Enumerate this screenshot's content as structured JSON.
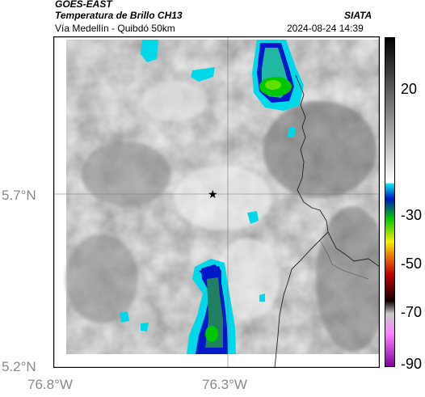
{
  "header": {
    "satellite": "GOES-EAST",
    "product": "Temperatura de Brillo CH13",
    "agency": "SIATA",
    "route": "Vía Medellín - Quibdó 50km",
    "datetime": "2024-08-24 14:39"
  },
  "map": {
    "lat_ticks": [
      "5.7°N",
      "5.2°N"
    ],
    "lon_ticks": [
      "76.8°W",
      "76.3°W"
    ],
    "marker_icon": "star-icon"
  },
  "colorbar": {
    "ticks": [
      "20",
      "-30",
      "-50",
      "-70",
      "-90"
    ],
    "colors": {
      "black": "#000000",
      "gray": "#888888",
      "white": "#ffffff",
      "cyan": "#00d8e8",
      "blue": "#0018c8",
      "green": "#00c800",
      "yellow": "#f0f000",
      "red": "#e00000",
      "magenta": "#c040c0"
    }
  }
}
